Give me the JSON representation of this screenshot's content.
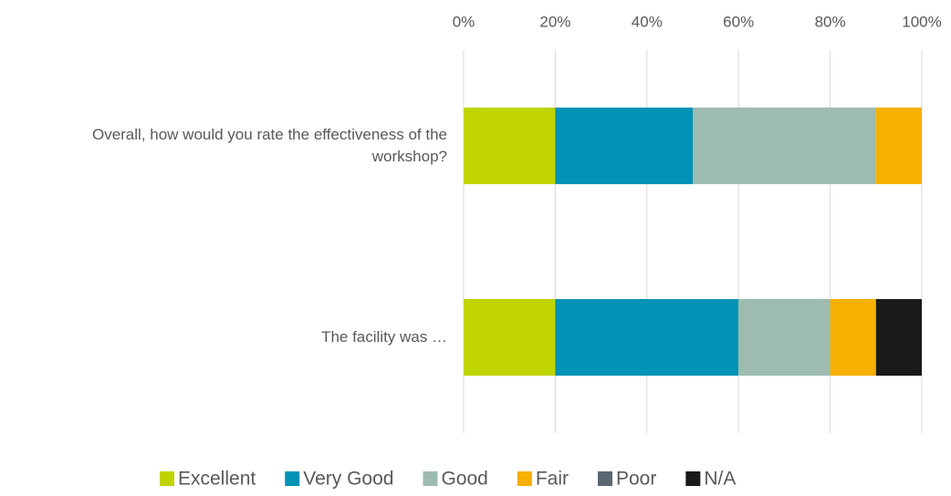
{
  "chart_data": {
    "type": "stacked-bar-horizontal",
    "categories": [
      "Overall, how would you rate the effectiveness of the workshop?",
      "The facility was …"
    ],
    "series": [
      {
        "name": "Excellent",
        "color": "#c0d400",
        "values": [
          20,
          20
        ]
      },
      {
        "name": "Very Good",
        "color": "#0093b5",
        "values": [
          30,
          40
        ]
      },
      {
        "name": "Good",
        "color": "#9dbcaf",
        "values": [
          40,
          20
        ]
      },
      {
        "name": "Fair",
        "color": "#f5b000",
        "values": [
          10,
          10
        ]
      },
      {
        "name": "Poor",
        "color": "#5b6770",
        "values": [
          0,
          0
        ]
      },
      {
        "name": "N/A",
        "color": "#1a1a1a",
        "values": [
          0,
          10
        ]
      }
    ],
    "xlim": [
      0,
      100
    ],
    "xticks": [
      {
        "value": 0,
        "label": "0%"
      },
      {
        "value": 20,
        "label": "20%"
      },
      {
        "value": 40,
        "label": "40%"
      },
      {
        "value": 60,
        "label": "60%"
      },
      {
        "value": 80,
        "label": "80%"
      },
      {
        "value": 100,
        "label": "100%"
      }
    ],
    "grid": true,
    "legend": "bottom"
  }
}
